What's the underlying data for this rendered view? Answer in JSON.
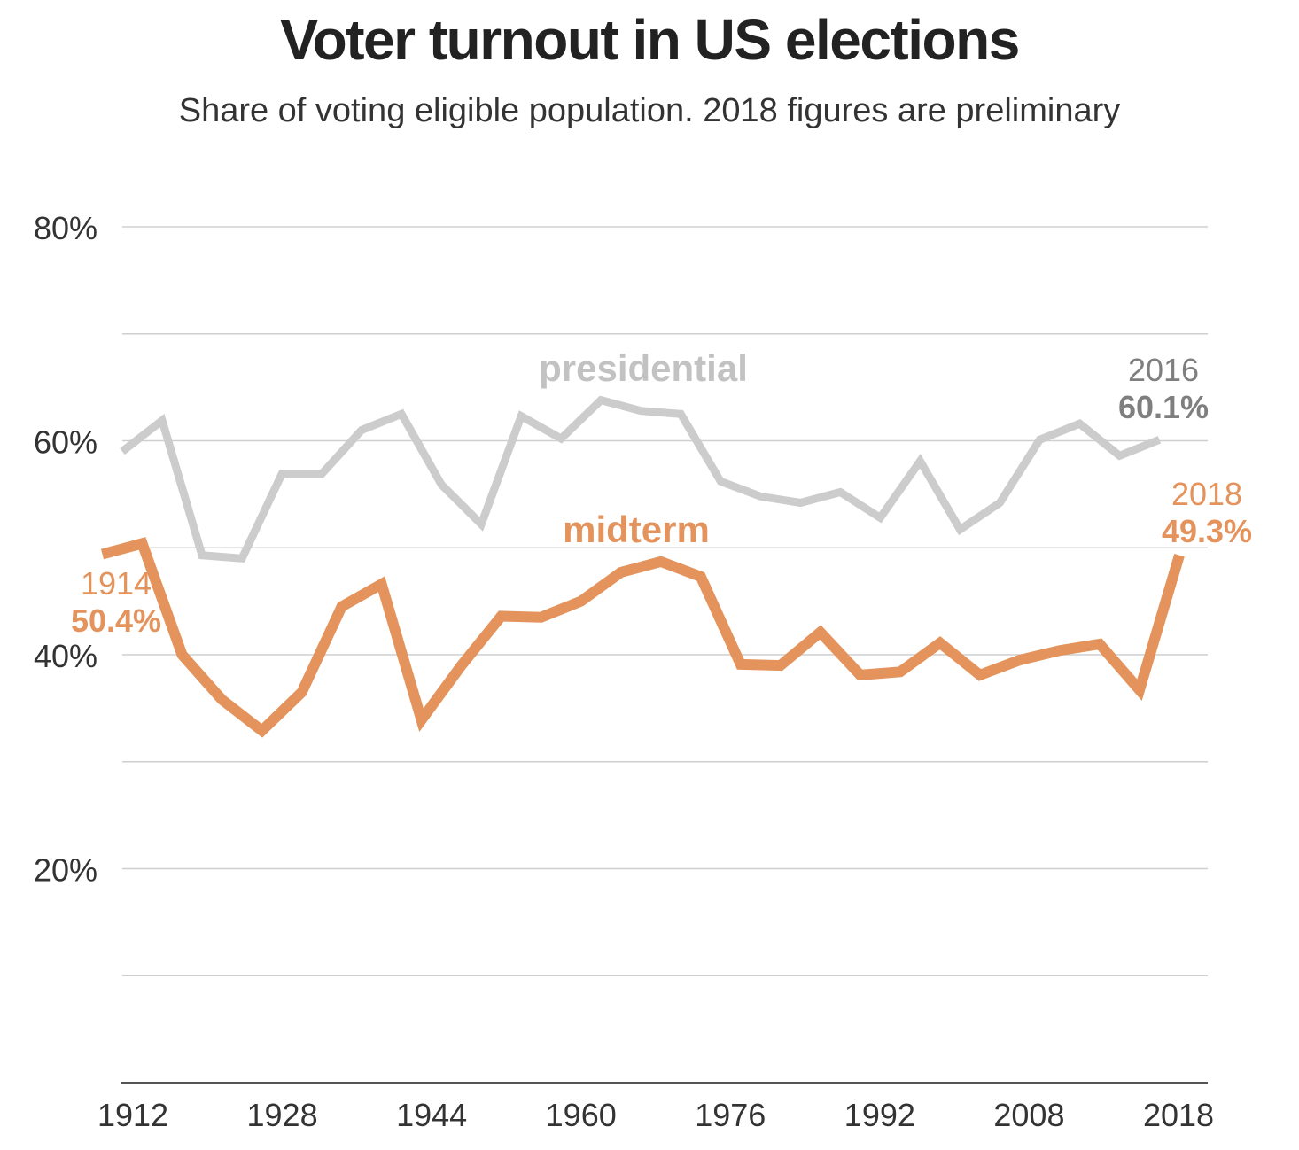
{
  "title": "Voter turnout in US elections",
  "subtitle": "Share of voting eligible population. 2018 figures are preliminary",
  "colors": {
    "presidential": "#cccccc",
    "midterm": "#e3935b",
    "presidential_label": "#c2c2c2",
    "presidential_end_label": "#7f7f7f",
    "midterm_label": "#e3935b",
    "grid": "#cfcfcf",
    "axis": "#555555",
    "tick_text": "#333333"
  },
  "chart_data": {
    "type": "line",
    "title": "Voter turnout in US elections",
    "subtitle": "Share of voting eligible population. 2018 figures are preliminary",
    "xlim": [
      1912,
      2018
    ],
    "ylim": [
      0,
      80
    ],
    "x_ticks": [
      1912,
      1928,
      1944,
      1960,
      1976,
      1992,
      2008,
      2018
    ],
    "x_tick_labels": [
      "1912",
      "1928",
      "1944",
      "1960",
      "1976",
      "1992",
      "2008",
      "2018"
    ],
    "y_gridlines": [
      10,
      20,
      30,
      40,
      50,
      60,
      70,
      80
    ],
    "y_ticks": [
      20,
      40,
      60,
      80
    ],
    "y_tick_labels": [
      "20%",
      "40%",
      "60%",
      "80%"
    ],
    "grid": true,
    "series": [
      {
        "name": "presidential",
        "x": [
          1912,
          1916,
          1920,
          1924,
          1928,
          1932,
          1936,
          1940,
          1944,
          1948,
          1952,
          1956,
          1960,
          1964,
          1968,
          1972,
          1976,
          1980,
          1984,
          1988,
          1992,
          1996,
          2000,
          2004,
          2008,
          2012,
          2016
        ],
        "y": [
          59,
          61.9,
          49.3,
          49,
          56.9,
          56.9,
          61,
          62.5,
          55.9,
          52.2,
          62.3,
          60.2,
          63.8,
          62.8,
          62.5,
          56.2,
          54.8,
          54.2,
          55.2,
          52.8,
          58.1,
          51.7,
          54.2,
          60.1,
          61.6,
          58.6,
          60.1
        ]
      },
      {
        "name": "midterm",
        "x": [
          1910,
          1914,
          1918,
          1922,
          1926,
          1930,
          1934,
          1938,
          1942,
          1946,
          1950,
          1954,
          1958,
          1962,
          1966,
          1970,
          1974,
          1978,
          1982,
          1986,
          1990,
          1994,
          1998,
          2002,
          2006,
          2010,
          2014,
          2018
        ],
        "y": [
          49.4,
          50.4,
          40,
          35.8,
          32.9,
          36.5,
          44.5,
          46.6,
          33.9,
          39,
          43.6,
          43.5,
          45,
          47.7,
          48.7,
          47.3,
          39.1,
          39,
          42.1,
          38.1,
          38.4,
          41.1,
          38.1,
          39.5,
          40.4,
          41,
          36.7,
          49.3
        ]
      }
    ],
    "annotations": {
      "presidential_label": "presidential",
      "midterm_label": "midterm",
      "presidential_end_year": "2016",
      "presidential_end_value": "60.1%",
      "midterm_start_year": "1914",
      "midterm_start_value": "50.4%",
      "midterm_end_year": "2018",
      "midterm_end_value": "49.3%"
    }
  }
}
